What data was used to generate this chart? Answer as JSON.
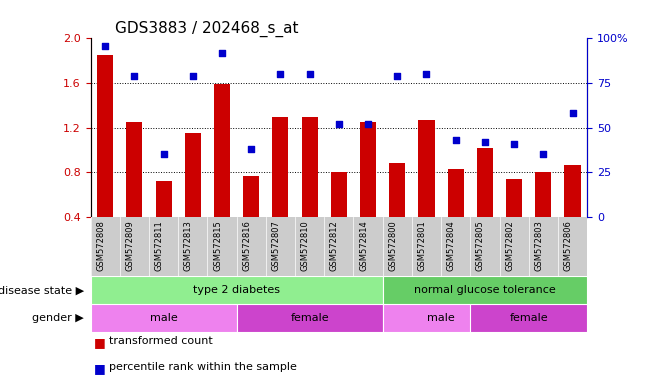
{
  "title": "GDS3883 / 202468_s_at",
  "samples": [
    "GSM572808",
    "GSM572809",
    "GSM572811",
    "GSM572813",
    "GSM572815",
    "GSM572816",
    "GSM572807",
    "GSM572810",
    "GSM572812",
    "GSM572814",
    "GSM572800",
    "GSM572801",
    "GSM572804",
    "GSM572805",
    "GSM572802",
    "GSM572803",
    "GSM572806"
  ],
  "transformed_count": [
    1.85,
    1.25,
    0.72,
    1.15,
    1.59,
    0.77,
    1.3,
    1.3,
    0.8,
    1.25,
    0.88,
    1.27,
    0.83,
    1.02,
    0.74,
    0.8,
    0.87
  ],
  "percentile_rank": [
    96,
    79,
    35,
    79,
    92,
    38,
    80,
    80,
    52,
    52,
    79,
    80,
    43,
    42,
    41,
    35,
    58
  ],
  "bar_color": "#cc0000",
  "scatter_color": "#0000cc",
  "ylim_left": [
    0.4,
    2.0
  ],
  "ylim_right": [
    0,
    100
  ],
  "yticks_left": [
    0.4,
    0.8,
    1.2,
    1.6,
    2.0
  ],
  "yticks_right": [
    0,
    25,
    50,
    75,
    100
  ],
  "ytick_labels_right": [
    "0",
    "25",
    "50",
    "75",
    "100%"
  ],
  "grid_values": [
    0.8,
    1.2,
    1.6
  ],
  "ds_groups": [
    {
      "label": "type 2 diabetes",
      "start": 0,
      "end": 9,
      "color": "#90EE90"
    },
    {
      "label": "normal glucose tolerance",
      "start": 10,
      "end": 16,
      "color": "#66CD66"
    }
  ],
  "gender_groups": [
    {
      "label": "male",
      "start": 0,
      "end": 4,
      "color": "#EE82EE"
    },
    {
      "label": "female",
      "start": 5,
      "end": 9,
      "color": "#CC44CC"
    },
    {
      "label": "male",
      "start": 10,
      "end": 13,
      "color": "#EE82EE"
    },
    {
      "label": "female",
      "start": 13,
      "end": 16,
      "color": "#CC44CC"
    }
  ],
  "legend_items": [
    {
      "label": "transformed count",
      "color": "#cc0000"
    },
    {
      "label": "percentile rank within the sample",
      "color": "#0000cc"
    }
  ],
  "xtick_bg": "#cccccc",
  "background_color": "#ffffff",
  "title_fontsize": 11,
  "tick_fontsize": 8,
  "sample_fontsize": 6,
  "annot_fontsize": 8
}
